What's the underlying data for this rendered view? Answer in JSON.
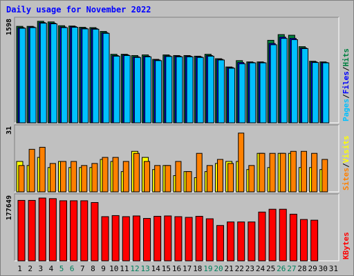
{
  "chart_data": {
    "type": "bar",
    "title": "Daily usage for November 2022",
    "days": [
      "1",
      "2",
      "3",
      "4",
      "5",
      "6",
      "7",
      "8",
      "9",
      "10",
      "11",
      "12",
      "13",
      "14",
      "15",
      "16",
      "17",
      "18",
      "19",
      "20",
      "21",
      "22",
      "23",
      "24",
      "25",
      "26",
      "27",
      "28",
      "29",
      "30",
      "31"
    ],
    "weekend_days": [
      "5",
      "6",
      "12",
      "13",
      "19",
      "20",
      "26",
      "27"
    ],
    "colors": {
      "title": "#0000ff",
      "hits": "#008040",
      "files": "#0000ff",
      "pages": "#00c0ff",
      "visits": "#ffff00",
      "sites": "#ff8000",
      "kbytes": "#ff0000",
      "weekday_label": "#000000",
      "weekend_label": "#00805c",
      "separator": "#000000"
    },
    "panels": [
      {
        "id": "requests",
        "max_label": "1598",
        "ymax": 1598,
        "legend": [
          {
            "label": "Pages",
            "color": "#00c0ff"
          },
          {
            "label": "/",
            "color": "#000000"
          },
          {
            "label": "Files",
            "color": "#0000ff"
          },
          {
            "label": "/",
            "color": "#000000"
          },
          {
            "label": "Hits",
            "color": "#008040"
          }
        ],
        "series": [
          {
            "name": "Hits",
            "color": "#008040",
            "values": [
              1520,
              1520,
              1600,
              1590,
              1530,
              1525,
              1505,
              1500,
              1440,
              1080,
              1080,
              1060,
              1070,
              1000,
              1070,
              1060,
              1060,
              1050,
              1080,
              1010,
              880,
              980,
              960,
              960,
              1300,
              1390,
              1380,
              1200,
              970,
              960,
              0
            ]
          },
          {
            "name": "Files",
            "color": "#0000ff",
            "values": [
              1500,
              1510,
              1580,
              1570,
              1510,
              1515,
              1490,
              1485,
              1420,
              1060,
              1070,
              1040,
              1050,
              990,
              1055,
              1050,
              1050,
              1040,
              1060,
              1000,
              870,
              950,
              950,
              950,
              1250,
              1350,
              1330,
              1180,
              960,
              950,
              0
            ]
          },
          {
            "name": "Pages",
            "color": "#00c0ff",
            "values": [
              1490,
              1500,
              1570,
              1560,
              1500,
              1505,
              1480,
              1475,
              1410,
              1050,
              1060,
              1030,
              1040,
              980,
              1045,
              1040,
              1040,
              1030,
              1050,
              990,
              860,
              930,
              945,
              945,
              1230,
              1330,
              1310,
              1170,
              950,
              945,
              0
            ]
          }
        ]
      },
      {
        "id": "visitors",
        "max_label": "31",
        "ymax": 31,
        "legend": [
          {
            "label": "Sites",
            "color": "#ff8000"
          },
          {
            "label": "/",
            "color": "#000000"
          },
          {
            "label": "Visits",
            "color": "#ffff00"
          }
        ],
        "series": [
          {
            "name": "Visits",
            "color": "#ffff00",
            "values": [
              15,
              13,
              17,
              12,
              15,
              12,
              12,
              12,
              16,
              15,
              10,
              20,
              17,
              11,
              13,
              8,
              10,
              7,
              10,
              14,
              15,
              15,
              11,
              19,
              12,
              19,
              19,
              12,
              12,
              11,
              0
            ]
          },
          {
            "name": "Sites",
            "color": "#ff8000",
            "values": [
              13,
              21,
              22,
              14,
              15,
              15,
              13,
              14,
              17,
              17,
              15,
              19,
              15,
              13,
              13,
              15,
              10,
              19,
              13,
              16,
              14,
              29,
              13,
              19,
              19,
              19,
              20,
              20,
              19,
              16,
              0
            ]
          }
        ]
      },
      {
        "id": "kbytes",
        "max_label": "177649",
        "ymax": 177649,
        "legend": [
          {
            "label": "KBytes",
            "color": "#ff0000"
          }
        ],
        "series": [
          {
            "name": "KBytes",
            "color": "#ff0000",
            "values": [
              171000,
              171000,
              177649,
              176000,
              170000,
              170000,
              170000,
              165000,
              125000,
              128000,
              125000,
              127000,
              120000,
              126000,
              127000,
              125000,
              123000,
              126000,
              119000,
              100000,
              110000,
              110000,
              110000,
              138000,
              146000,
              146000,
              132000,
              117000,
              115000,
              0,
              0
            ]
          }
        ]
      }
    ]
  }
}
